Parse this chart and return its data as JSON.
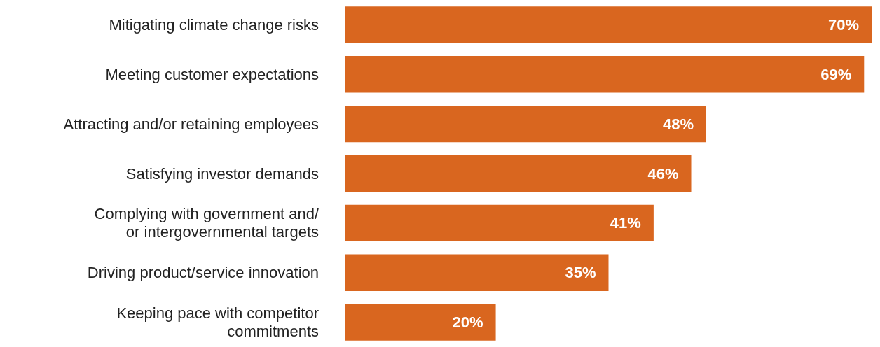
{
  "chart_data": {
    "type": "bar",
    "orientation": "horizontal",
    "categories": [
      "Mitigating climate change risks",
      "Meeting customer expectations",
      "Attracting and/or retaining employees",
      "Satisfying investor demands",
      "Complying with government and/\nor intergovernmental targets",
      "Driving product/service innovation",
      "Keeping pace with competitor\ncommitments"
    ],
    "values": [
      70,
      69,
      48,
      46,
      41,
      35,
      20
    ],
    "value_labels": [
      "70%",
      "69%",
      "48%",
      "46%",
      "41%",
      "35%",
      "20%"
    ],
    "color": "#d9661f"
  }
}
